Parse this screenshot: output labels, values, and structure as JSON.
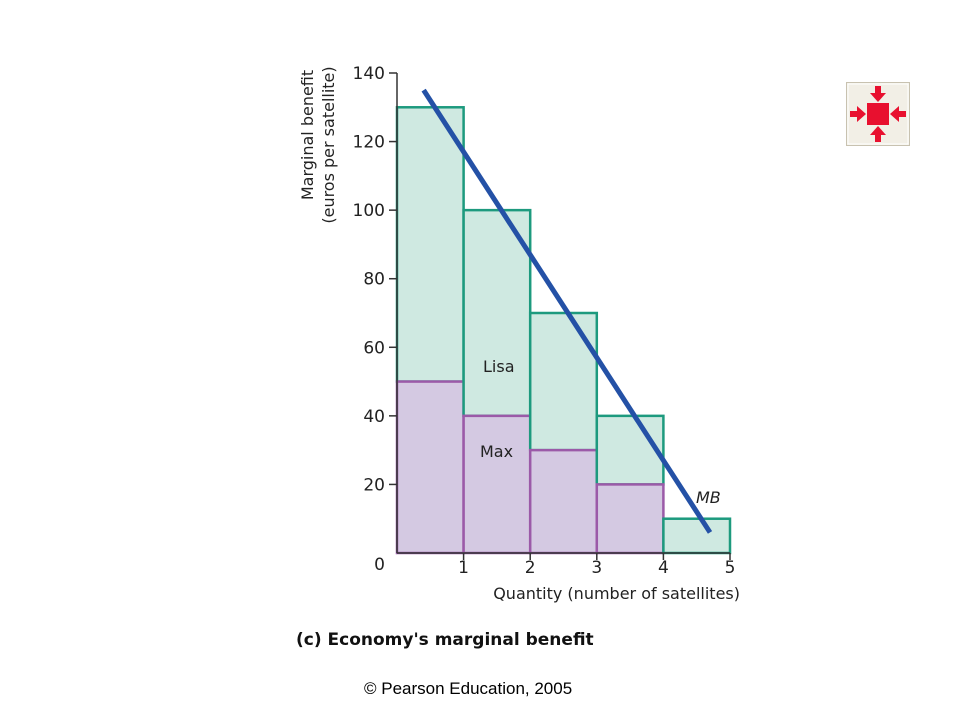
{
  "chart_data": {
    "type": "bar",
    "stacked": true,
    "title": "(c) Economy's marginal benefit",
    "xlabel": "Quantity (number of satellites)",
    "ylabel_lines": [
      "Marginal benefit",
      "(euros per satellite)"
    ],
    "xlim": [
      0,
      5
    ],
    "ylim": [
      0,
      140
    ],
    "x_ticks": [
      "0",
      "1",
      "2",
      "3",
      "4",
      "5"
    ],
    "y_ticks": [
      "20",
      "40",
      "60",
      "80",
      "100",
      "120",
      "140"
    ],
    "categories": [
      "1",
      "2",
      "3",
      "4",
      "5"
    ],
    "series": [
      {
        "name": "Max",
        "values": [
          50,
          40,
          30,
          20,
          0
        ]
      },
      {
        "name": "Lisa",
        "values": [
          80,
          60,
          40,
          20,
          10
        ]
      }
    ],
    "totals": [
      130,
      100,
      70,
      40,
      10
    ],
    "curve": {
      "name": "MB",
      "points": [
        [
          0.4,
          135
        ],
        [
          4.7,
          6
        ]
      ]
    },
    "colors": {
      "max_fill": "#d4c9e2",
      "max_stroke": "#9b5aa8",
      "lisa_fill": "#cfe9e1",
      "lisa_stroke": "#1d9a7e",
      "mb_line": "#2451a6"
    }
  },
  "footer": {
    "copyright": "© Pearson Education, 2005"
  },
  "nav": {
    "icon": "shrink-arrows-icon"
  }
}
